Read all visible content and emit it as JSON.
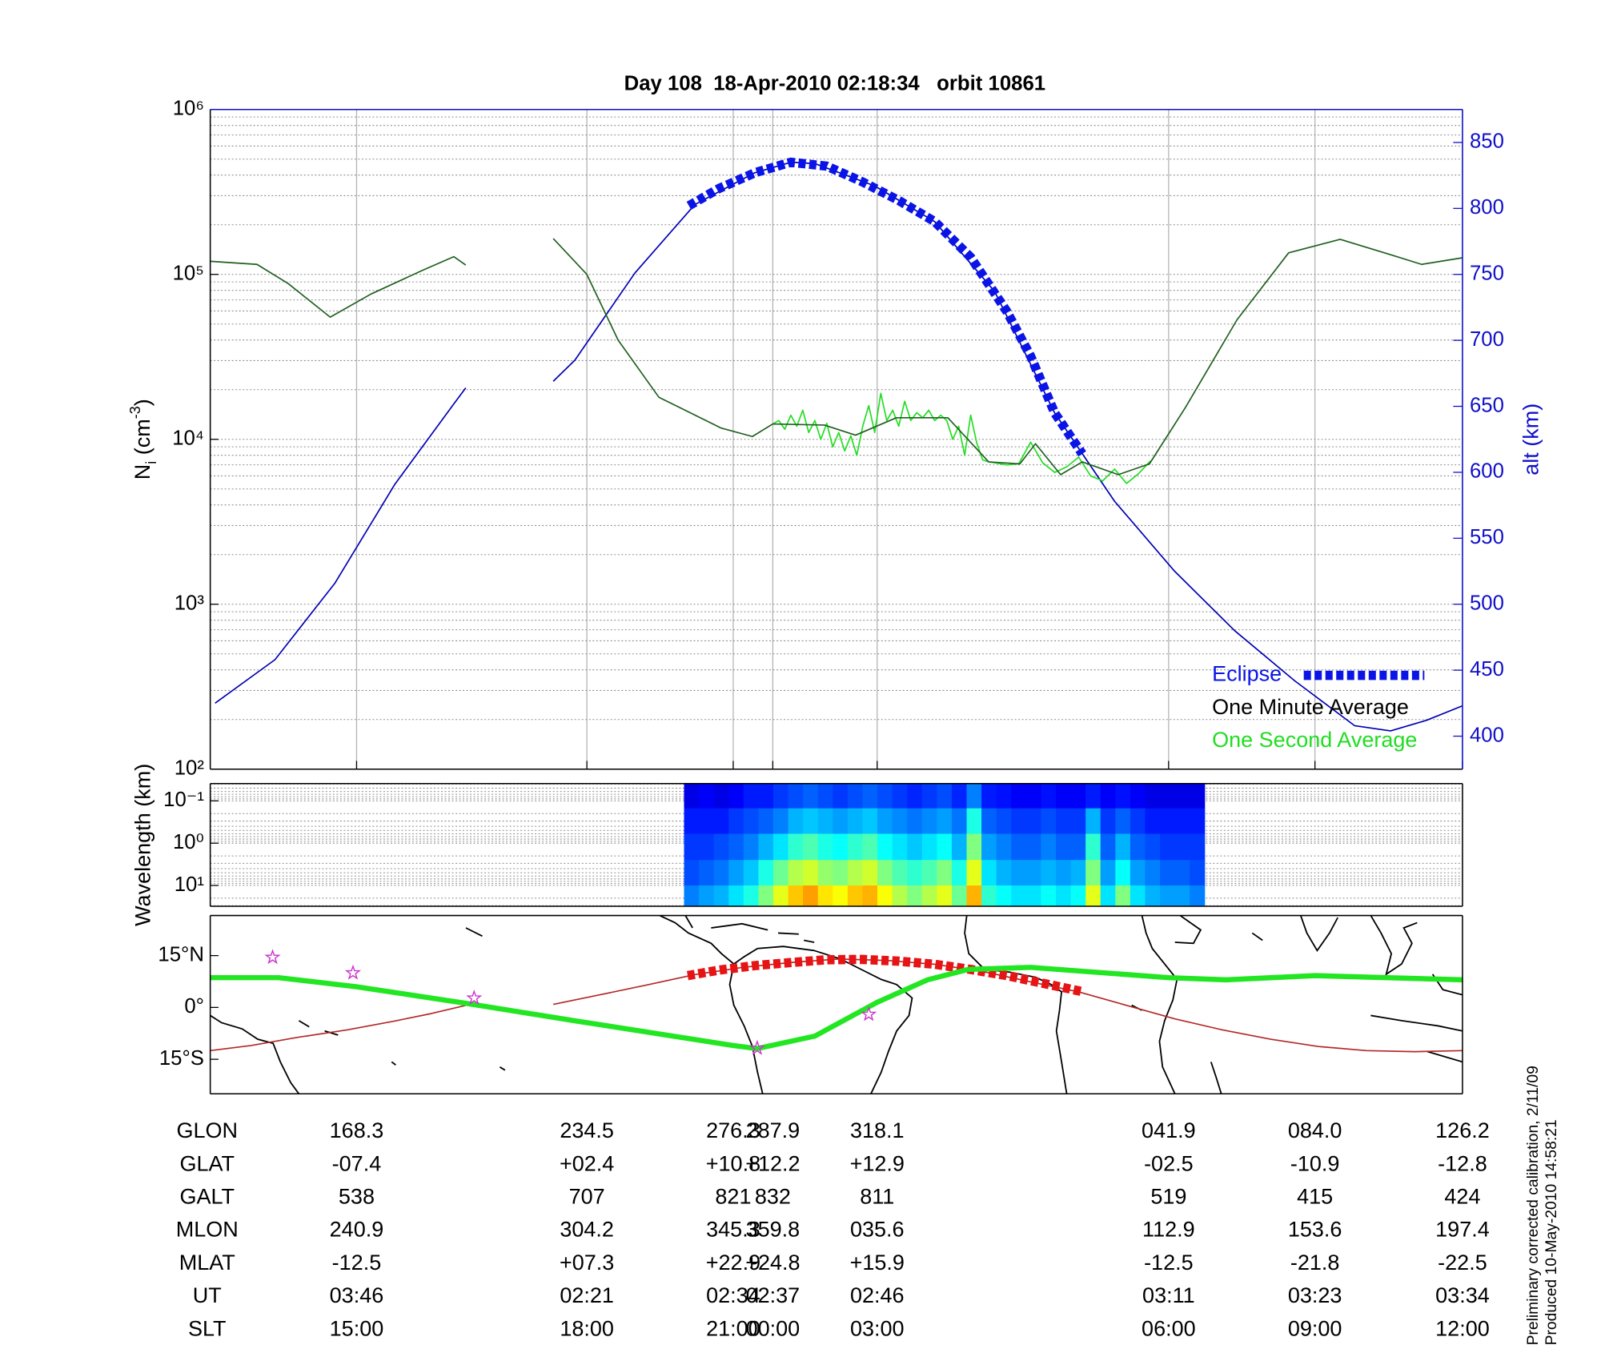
{
  "chart_data": [
    {
      "type": "line",
      "title": "Day 108  18-Apr-2010 02:18:34   orbit 10861",
      "ylabel": [
        {
          "text": "N"
        },
        {
          "text": "i",
          "shift": "sub"
        },
        {
          "text": " (cm"
        },
        {
          "text": "-3",
          "shift": "super"
        },
        {
          "text": ")"
        }
      ],
      "y2label": "alt (km)",
      "y2_color": "#1010c8",
      "xlim": [
        109.6,
        214
      ],
      "xticks": [
        121.8,
        141,
        153.2,
        156.5,
        165.2,
        189.5,
        201.7,
        214
      ],
      "yscale": "log",
      "ylim": [
        100,
        1000000
      ],
      "yticks": [
        {
          "value": 100,
          "label": "10²"
        },
        {
          "value": 1000,
          "label": "10³"
        },
        {
          "value": 10000,
          "label": "10⁴"
        },
        {
          "value": 100000,
          "label": "10⁵"
        },
        {
          "value": 1000000,
          "label": "10⁶"
        }
      ],
      "y2lim": [
        375,
        875
      ],
      "y2ticks": [
        400,
        450,
        500,
        550,
        600,
        650,
        700,
        750,
        800,
        850
      ],
      "grid": true,
      "minor_grid": true,
      "legend": "lower right",
      "series": [
        {
          "name": "Eclipse",
          "color": "#0a14e6",
          "axis": "y2",
          "style": "squares",
          "x": [
            149.5,
            152,
            155,
            158,
            161,
            164,
            167,
            170,
            173,
            176,
            178,
            180,
            182.3
          ],
          "values": [
            802,
            815,
            827,
            835,
            832,
            820,
            806,
            790,
            763,
            722,
            688,
            645,
            614
          ]
        },
        {
          "name": "One Minute Average",
          "color": "#1f5f1f",
          "label_color": "#000000",
          "style": "line",
          "x": [
            109.6,
            113.5,
            116.1,
            119.6,
            123,
            127.3,
            129.9,
            130.9,
            134,
            138.2,
            141,
            143.6,
            147,
            152.2,
            154.8,
            156.5,
            160.8,
            163.4,
            166.8,
            171.1,
            174.5,
            177.1,
            178.4,
            180.5,
            182.3,
            185.3,
            187.9,
            190.9,
            195.2,
            199.5,
            203.8,
            208.1,
            210.6,
            214
          ],
          "values": [
            120000,
            115000,
            88000,
            55000,
            76000,
            106000,
            128000,
            114000,
            null,
            165000,
            100000,
            40000,
            18000,
            11700,
            10400,
            12400,
            12200,
            10600,
            13500,
            13500,
            7300,
            7100,
            9400,
            6100,
            7300,
            6100,
            7100,
            15600,
            53000,
            135000,
            163000,
            131000,
            115000,
            126000
          ]
        },
        {
          "name": "One Second Average",
          "color": "#22dd22",
          "style": "line",
          "x": [
            156.5,
            157,
            157.5,
            158,
            158.5,
            159,
            159.5,
            160,
            160.5,
            161,
            161.5,
            162,
            162.5,
            163,
            163.5,
            164,
            164.5,
            165,
            165.5,
            166,
            166.5,
            167,
            167.5,
            168,
            168.5,
            169,
            169.5,
            170,
            170.5,
            171,
            171.5,
            172,
            172.5,
            173,
            173.5,
            174,
            174.5,
            175,
            176,
            177,
            178,
            179,
            180,
            181,
            182,
            183,
            184,
            185,
            186,
            187,
            188
          ],
          "values": [
            12400,
            13000,
            11500,
            14000,
            12000,
            15000,
            11000,
            13000,
            10000,
            12500,
            9000,
            11000,
            8500,
            10500,
            8000,
            12000,
            16000,
            11000,
            19000,
            13000,
            15000,
            12000,
            17000,
            13000,
            14500,
            13500,
            15000,
            13000,
            14000,
            13000,
            10000,
            12000,
            8000,
            14000,
            9500,
            7500,
            7300,
            7200,
            7000,
            7100,
            9600,
            7200,
            6300,
            6800,
            7800,
            6000,
            5600,
            6600,
            5400,
            6200,
            7400
          ]
        },
        {
          "color": "#0000b4",
          "axis": "y2",
          "style": "line",
          "x": [
            110,
            115,
            120,
            125,
            130,
            130.9,
            134,
            138.2,
            140,
            145,
            150,
            155,
            158,
            160,
            165,
            170,
            175,
            180,
            185,
            190,
            195,
            200,
            205,
            208,
            211,
            214
          ],
          "values": [
            425,
            458,
            516,
            591,
            653,
            664,
            null,
            669,
            685,
            751,
            803,
            827,
            835,
            834,
            817,
            790,
            737,
            645,
            578,
            525,
            480,
            442,
            408,
            404,
            412,
            423
          ]
        }
      ]
    },
    {
      "type": "heatmap",
      "ylabel": "Wavelength (km)",
      "xlim": [
        109.6,
        214
      ],
      "yscale": "log",
      "y_inverted": true,
      "ylim": [
        0.039,
        31
      ],
      "yticks": [
        {
          "value": 0.1,
          "label": "10⁻¹"
        },
        {
          "value": 1,
          "label": "10⁰"
        },
        {
          "value": 10,
          "label": "10¹"
        }
      ],
      "minor_grid": true,
      "colormap": "jet",
      "x_edges": [
        149.1,
        150.34,
        151.58,
        152.82,
        154.06,
        155.3,
        156.54,
        157.78,
        159.02,
        160.26,
        161.5,
        162.74,
        163.98,
        165.22,
        166.46,
        167.7,
        168.94,
        170.18,
        171.42,
        172.66,
        173.9,
        175.14,
        176.38,
        177.62,
        178.86,
        180.1,
        181.34,
        182.58,
        183.82,
        185.06,
        186.3,
        187.54,
        188.78,
        190.02,
        191.26,
        192.5
      ],
      "y_edges": [
        0.039,
        0.15,
        0.6,
        2.5,
        10,
        31
      ],
      "z": [
        [
          0.1,
          0.12,
          0.1,
          0.12,
          0.15,
          0.15,
          0.18,
          0.2,
          0.22,
          0.2,
          0.18,
          0.2,
          0.22,
          0.2,
          0.18,
          0.16,
          0.18,
          0.2,
          0.16,
          0.25,
          0.15,
          0.14,
          0.12,
          0.12,
          0.14,
          0.12,
          0.12,
          0.15,
          0.12,
          0.14,
          0.12,
          0.1,
          0.1,
          0.1,
          0.1
        ],
        [
          0.15,
          0.15,
          0.15,
          0.18,
          0.2,
          0.22,
          0.25,
          0.3,
          0.32,
          0.3,
          0.28,
          0.3,
          0.32,
          0.28,
          0.26,
          0.24,
          0.26,
          0.28,
          0.24,
          0.4,
          0.22,
          0.2,
          0.18,
          0.18,
          0.2,
          0.18,
          0.18,
          0.3,
          0.18,
          0.22,
          0.18,
          0.15,
          0.15,
          0.15,
          0.15
        ],
        [
          0.18,
          0.18,
          0.2,
          0.22,
          0.25,
          0.3,
          0.35,
          0.42,
          0.45,
          0.4,
          0.38,
          0.42,
          0.45,
          0.38,
          0.35,
          0.32,
          0.35,
          0.38,
          0.3,
          0.5,
          0.28,
          0.25,
          0.22,
          0.22,
          0.25,
          0.22,
          0.22,
          0.42,
          0.22,
          0.3,
          0.22,
          0.2,
          0.18,
          0.18,
          0.18
        ],
        [
          0.2,
          0.22,
          0.24,
          0.28,
          0.32,
          0.4,
          0.48,
          0.55,
          0.58,
          0.52,
          0.5,
          0.55,
          0.58,
          0.5,
          0.45,
          0.42,
          0.45,
          0.5,
          0.4,
          0.6,
          0.35,
          0.3,
          0.28,
          0.28,
          0.3,
          0.28,
          0.3,
          0.5,
          0.28,
          0.38,
          0.28,
          0.25,
          0.22,
          0.22,
          0.2
        ],
        [
          0.25,
          0.28,
          0.3,
          0.35,
          0.4,
          0.5,
          0.6,
          0.68,
          0.72,
          0.65,
          0.62,
          0.68,
          0.7,
          0.62,
          0.55,
          0.5,
          0.55,
          0.6,
          0.48,
          0.7,
          0.42,
          0.38,
          0.35,
          0.35,
          0.38,
          0.35,
          0.38,
          0.6,
          0.35,
          0.5,
          0.35,
          0.3,
          0.28,
          0.28,
          0.25
        ]
      ]
    },
    {
      "type": "map",
      "xlim": [
        109.6,
        214
      ],
      "ylim": [
        -25,
        26.6
      ],
      "yticks": [
        {
          "value": 15,
          "label": "15°N"
        },
        {
          "value": 0,
          "label": "0°"
        },
        {
          "value": -15,
          "label": "15°S"
        }
      ],
      "series": [
        {
          "color": "#b42828",
          "style": "line",
          "x": [
            109.6,
            113,
            117,
            121,
            125,
            128,
            130.9,
            134,
            138.2,
            142,
            146,
            150,
            154,
            158,
            162,
            166,
            170,
            174,
            178,
            182,
            186,
            190,
            194,
            198,
            202,
            206,
            210,
            214
          ],
          "values": [
            -12.5,
            -11,
            -8.6,
            -6.5,
            -3.9,
            -1.8,
            0.6,
            null,
            0.9,
            3.6,
            6.5,
            9.5,
            11.6,
            13,
            14,
            13.6,
            12.5,
            10.4,
            7.4,
            4.5,
            0.6,
            -3.3,
            -6.5,
            -9.2,
            -11.3,
            -12.5,
            -12.8,
            -12.5
          ]
        },
        {
          "color": "#e61414",
          "style": "squares",
          "x": [
            149.4,
            152,
            155,
            158,
            161,
            164,
            167,
            170,
            173,
            176,
            179,
            182.3
          ],
          "values": [
            9.2,
            10.8,
            12.1,
            13,
            13.8,
            13.9,
            13.4,
            12.5,
            11,
            9.2,
            7,
            4.6
          ]
        },
        {
          "color": "#22e622",
          "style": "thick",
          "x": [
            109.6,
            115.3,
            121.8,
            130.9,
            140.1,
            153.2,
            155.2,
            160,
            165.2,
            169.4,
            172.8,
            178,
            189.5,
            194.3,
            201.7,
            214
          ],
          "values": [
            8.6,
            8.6,
            6,
            1.2,
            -3.9,
            -11,
            -11.9,
            -8.3,
            1.5,
            8,
            11,
            11.6,
            8.6,
            8,
            9.2,
            8
          ]
        }
      ],
      "markers": {
        "color": "#cc33cc",
        "x": [
          114.8,
          121.5,
          131.6,
          155.2,
          164.5
        ],
        "values": [
          14.5,
          10,
          2.7,
          -11.8,
          -2
        ]
      }
    }
  ],
  "orbit_table": {
    "rows": [
      {
        "label": "GLON",
        "values": [
          "168.3",
          "234.5",
          "276.3",
          "287.9",
          "318.1",
          "041.9",
          "084.0",
          "126.2"
        ]
      },
      {
        "label": "GLAT",
        "values": [
          "-07.4",
          "+02.4",
          "+10.8",
          "+12.2",
          "+12.9",
          "-02.5",
          "-10.9",
          "-12.8"
        ]
      },
      {
        "label": "GALT",
        "values": [
          "538",
          "707",
          "821",
          "832",
          "811",
          "519",
          "415",
          "424"
        ]
      },
      {
        "label": "MLON",
        "values": [
          "240.9",
          "304.2",
          "345.3",
          "359.8",
          "035.6",
          "112.9",
          "153.6",
          "197.4"
        ]
      },
      {
        "label": "MLAT",
        "values": [
          "-12.5",
          "+07.3",
          "+22.9",
          "+24.8",
          "+15.9",
          "-12.5",
          "-21.8",
          "-22.5"
        ]
      },
      {
        "label": "UT",
        "values": [
          "03:46",
          "02:21",
          "02:34",
          "02:37",
          "02:46",
          "03:11",
          "03:23",
          "03:34"
        ]
      },
      {
        "label": "SLT",
        "values": [
          "15:00",
          "18:00",
          "21:00",
          "00:00",
          "03:00",
          "06:00",
          "09:00",
          "12:00"
        ]
      }
    ]
  },
  "notes": [
    "Preliminary corrected calibration, 2/11/09",
    "Produced 10-May-2010 14:58:21"
  ]
}
